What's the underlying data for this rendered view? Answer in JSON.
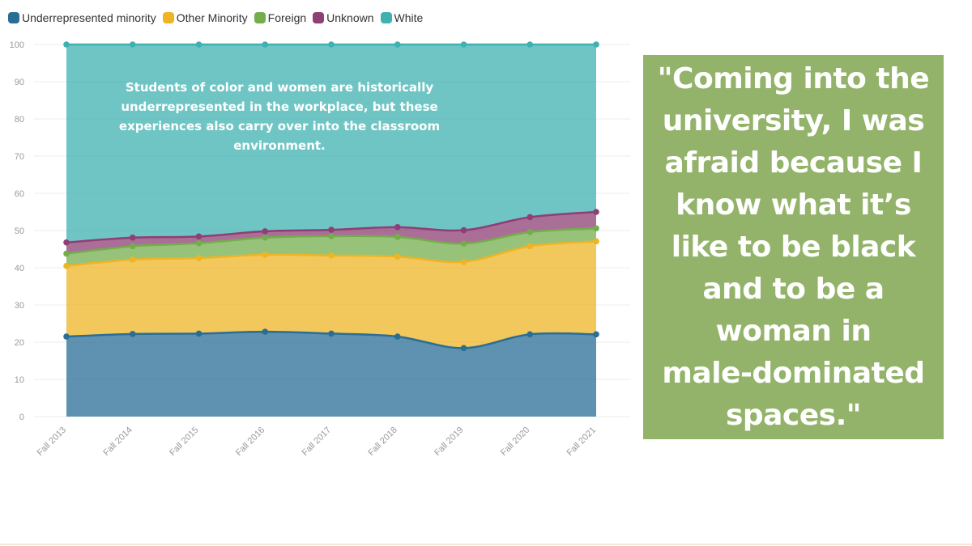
{
  "colors": {
    "underrepresented": "#2a6e96",
    "other_minority": "#eeb424",
    "foreign": "#74ad4c",
    "unknown": "#8e3f74",
    "white": "#3fb1b0",
    "quote_bg": "#93b36a",
    "grid": "#ececec"
  },
  "annotation": {
    "line1": "Students of color and women are historically",
    "line2": "underrepresented in the workplace, but these",
    "line3": "experiences also carry over into the classroom",
    "line4": "environment."
  },
  "quote": {
    "line1": "\"Coming into the",
    "line2": "university, I was",
    "line3": "afraid because I",
    "line4": "know what it’s",
    "line5": "like to be black",
    "line6": "and to be a",
    "line7": "woman in",
    "line8": "male-dominated",
    "line9": "spaces.\""
  },
  "chart_data": {
    "type": "area",
    "stacked": true,
    "categories": [
      "Fall 2013",
      "Fall 2014",
      "Fall 2015",
      "Fall 2016",
      "Fall 2017",
      "Fall 2018",
      "Fall 2019",
      "Fall 2020",
      "Fall 2021"
    ],
    "ylim": [
      0,
      100
    ],
    "yticks": [
      0,
      10,
      20,
      30,
      40,
      50,
      60,
      70,
      80,
      90,
      100
    ],
    "grid": true,
    "legend_position": "top-left",
    "series": [
      {
        "name": "Underrepresented minority",
        "color": "#2a6e96",
        "values": [
          21.5,
          22.2,
          22.3,
          22.8,
          22.3,
          21.5,
          18.4,
          22.1,
          22.1
        ]
      },
      {
        "name": "Other Minority",
        "color": "#eeb424",
        "values": [
          19.0,
          20.0,
          20.3,
          20.7,
          21.0,
          21.5,
          23.2,
          23.7,
          25.0
        ]
      },
      {
        "name": "Foreign",
        "color": "#74ad4c",
        "values": [
          3.3,
          3.6,
          4.0,
          4.6,
          5.2,
          5.3,
          4.9,
          3.8,
          3.5
        ]
      },
      {
        "name": "Unknown",
        "color": "#8e3f74",
        "values": [
          3.0,
          2.3,
          1.8,
          1.7,
          1.7,
          2.6,
          3.6,
          4.0,
          4.4
        ]
      },
      {
        "name": "White",
        "color": "#3fb1b0",
        "values": [
          53.2,
          51.9,
          51.6,
          50.2,
          49.8,
          49.1,
          49.9,
          46.4,
          45.0
        ]
      }
    ]
  }
}
